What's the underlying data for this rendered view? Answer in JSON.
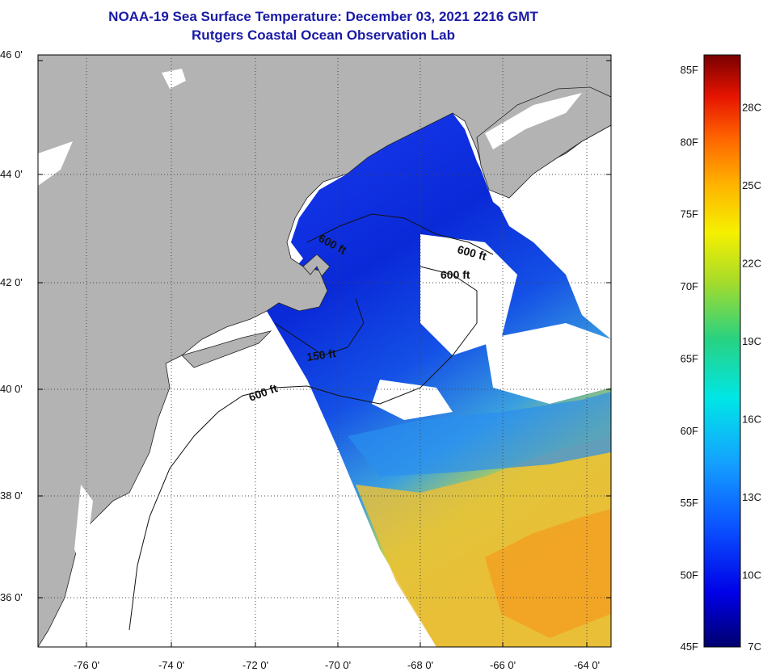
{
  "header": {
    "title": "NOAA-19 Sea Surface Temperature:  December 03, 2021 2216 GMT",
    "subtitle": "Rutgers Coastal Ocean Observation Lab"
  },
  "map": {
    "lat_labels": [
      "46 0'",
      "44 0'",
      "42 0'",
      "40 0'",
      "38 0'",
      "36 0'"
    ],
    "lon_labels": [
      "-76 0'",
      "-74 0'",
      "-72 0'",
      "-70 0'",
      "-68 0'",
      "-66 0'",
      "-64 0'"
    ],
    "contour_labels": [
      {
        "text": "600 ft",
        "name": "contour-label-gulf-of-maine"
      },
      {
        "text": "600 ft",
        "name": "contour-label-georges-north"
      },
      {
        "text": "600 ft",
        "name": "contour-label-georges-bank"
      },
      {
        "text": "150 ft",
        "name": "contour-label-nantucket-shoals"
      },
      {
        "text": "600 ft",
        "name": "contour-label-shelf-break"
      }
    ],
    "colors": {
      "land": "#b3b3b3",
      "cloud": "#ffffff",
      "graticule": "#444444"
    }
  },
  "colorbar": {
    "fahrenheit_labels": [
      "85F",
      "80F",
      "75F",
      "70F",
      "65F",
      "60F",
      "55F",
      "50F",
      "45F"
    ],
    "celsius_labels": [
      "28C",
      "25C",
      "22C",
      "19C",
      "16C",
      "13C",
      "10C",
      "7C"
    ],
    "range_f": [
      45,
      86
    ],
    "colors": [
      "#00006e",
      "#0000e6",
      "#0a50ff",
      "#14a0ff",
      "#00e6e6",
      "#28d282",
      "#aadc28",
      "#f5f000",
      "#ffb400",
      "#ff6400",
      "#e61400",
      "#780000"
    ]
  }
}
